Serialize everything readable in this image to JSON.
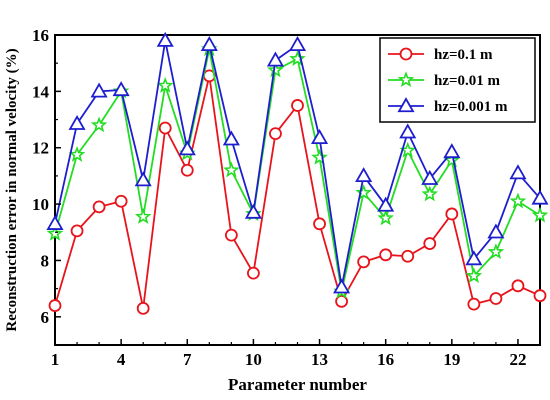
{
  "chart_data": {
    "type": "line",
    "xlabel": "Parameter number",
    "ylabel": "Reconstruction error in normal velocity (%)",
    "xlim": [
      1,
      23
    ],
    "ylim": [
      5,
      16
    ],
    "x_ticks": [
      1,
      4,
      7,
      10,
      13,
      16,
      19,
      22
    ],
    "y_ticks": [
      6,
      8,
      10,
      12,
      14,
      16
    ],
    "grid": false,
    "legend_position": "top-right",
    "x": [
      1,
      2,
      3,
      4,
      5,
      6,
      7,
      8,
      9,
      10,
      11,
      12,
      13,
      14,
      15,
      16,
      17,
      18,
      19,
      20,
      21,
      22,
      23
    ],
    "series": [
      {
        "name": "hz=0.1 m",
        "color": "#e8141c",
        "marker": "circle",
        "values": [
          6.4,
          9.05,
          9.9,
          10.1,
          6.3,
          12.7,
          11.2,
          14.55,
          8.9,
          7.55,
          12.5,
          13.5,
          9.3,
          6.55,
          7.95,
          8.2,
          8.15,
          8.6,
          9.65,
          6.45,
          6.65,
          7.1,
          6.75
        ]
      },
      {
        "name": "hz=0.01 m",
        "color": "#22dd22",
        "marker": "star",
        "values": [
          8.95,
          11.75,
          12.8,
          14.0,
          9.55,
          14.2,
          11.8,
          15.5,
          11.2,
          9.65,
          14.75,
          15.15,
          11.65,
          6.9,
          10.4,
          9.5,
          11.9,
          10.35,
          11.55,
          7.45,
          8.3,
          10.1,
          9.6
        ]
      },
      {
        "name": "hz=0.001 m",
        "color": "#1e1ecf",
        "marker": "triangle",
        "values": [
          9.3,
          12.85,
          14.0,
          14.05,
          10.85,
          15.8,
          11.95,
          15.65,
          12.3,
          9.7,
          15.1,
          15.65,
          12.35,
          7.05,
          11.0,
          9.95,
          12.55,
          10.9,
          11.85,
          8.05,
          9.0,
          11.1,
          10.2
        ]
      }
    ]
  }
}
